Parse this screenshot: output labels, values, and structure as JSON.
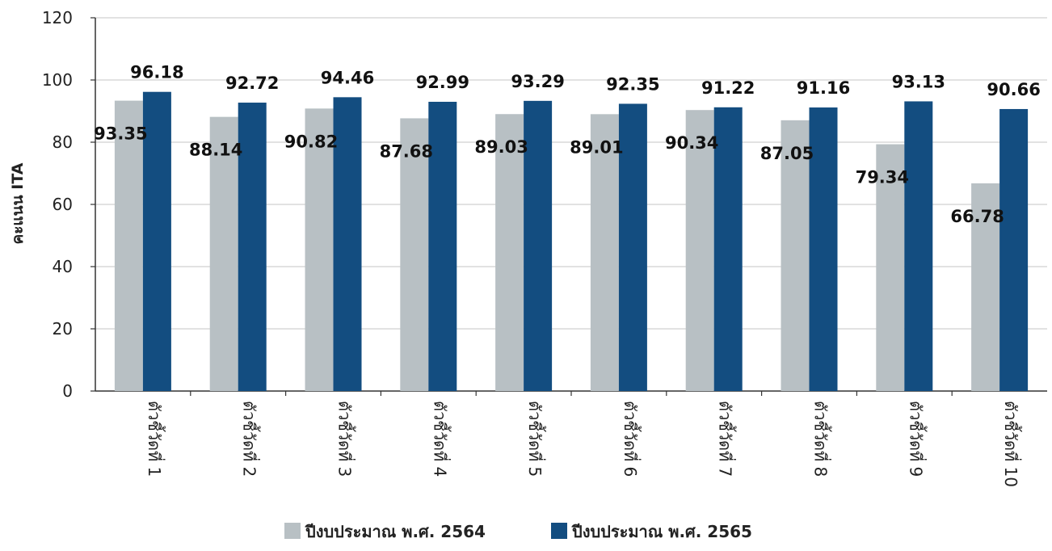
{
  "chart_data": {
    "type": "bar",
    "ylabel": "คะแนน ITA",
    "ylim": [
      0,
      120
    ],
    "yticks": [
      "0",
      "20",
      "40",
      "60",
      "80",
      "100",
      "120"
    ],
    "grid": true,
    "legend_position": "bottom",
    "categories": [
      "ตัวชี้วัดที่ 1",
      "ตัวชี้วัดที่ 2",
      "ตัวชี้วัดที่ 3",
      "ตัวชี้วัดที่ 4",
      "ตัวชี้วัดที่ 5",
      "ตัวชี้วัดที่ 6",
      "ตัวชี้วัดที่ 7",
      "ตัวชี้วัดที่ 8",
      "ตัวชี้วัดที่ 9",
      "ตัวชี้วัดที่ 10"
    ],
    "series": [
      {
        "name": "ปีงบประมาณ พ.ศ. 2564",
        "color": "#b8c0c4",
        "values": [
          93.35,
          88.14,
          90.82,
          87.68,
          89.03,
          89.01,
          90.34,
          87.05,
          79.34,
          66.78
        ],
        "labels": [
          "93.35",
          "88.14",
          "90.82",
          "87.68",
          "89.03",
          "89.01",
          "90.34",
          "87.05",
          "79.34",
          "66.78"
        ]
      },
      {
        "name": "ปีงบประมาณ พ.ศ. 2565",
        "color": "#134d80",
        "values": [
          96.18,
          92.72,
          94.46,
          92.99,
          93.29,
          92.35,
          91.22,
          91.16,
          93.13,
          90.66
        ],
        "labels": [
          "96.18",
          "92.72",
          "94.46",
          "92.99",
          "93.29",
          "92.35",
          "91.22",
          "91.16",
          "93.13",
          "90.66"
        ]
      }
    ]
  }
}
